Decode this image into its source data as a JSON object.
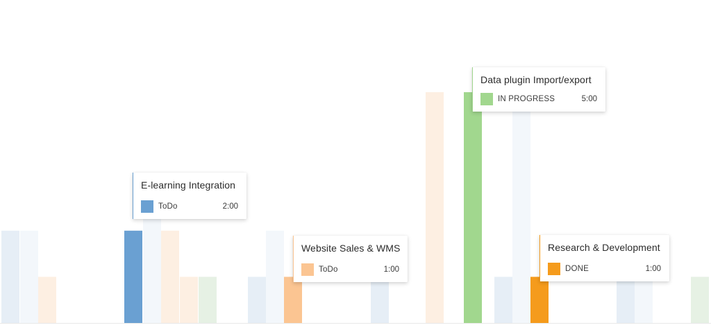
{
  "chart_data": {
    "type": "bar",
    "title": "",
    "xlabel": "",
    "ylabel": "",
    "ylim": [
      0,
      5
    ],
    "grid": false,
    "legend": "none",
    "colors": {
      "todo_blue": "#6aa0d2",
      "todo_orange": "#fbc592",
      "in_progress_green": "#a1d78e",
      "done_orange": "#f59b1c",
      "faded_blue": "#e6eef6",
      "faded_blue_light": "#f3f7fb",
      "faded_orange": "#fdefe2",
      "faded_green": "#e6f1e4",
      "axis": "#e8e8e8"
    },
    "highlighted_bars": [
      {
        "name": "E-learning Integration",
        "status": "ToDo",
        "value": 2,
        "color": "#6aa0d2"
      },
      {
        "name": "Website Sales & WMS",
        "status": "ToDo",
        "value": 1,
        "color": "#fbc592"
      },
      {
        "name": "Data plugin Import/export",
        "status": "IN PROGRESS",
        "value": 5,
        "color": "#a1d78e"
      },
      {
        "name": "Research & Development",
        "status": "DONE",
        "value": 1,
        "color": "#f59b1c"
      }
    ],
    "background_bars": [
      {
        "value": 2,
        "tone": "faded_blue"
      },
      {
        "value": 2,
        "tone": "faded_blue_light"
      },
      {
        "value": 1,
        "tone": "faded_orange"
      },
      {
        "value": 2.8,
        "tone": "faded_blue_light"
      },
      {
        "value": 2,
        "tone": "faded_orange"
      },
      {
        "value": 1,
        "tone": "faded_orange"
      },
      {
        "value": 1,
        "tone": "faded_green"
      },
      {
        "value": 1,
        "tone": "faded_blue"
      },
      {
        "value": 2,
        "tone": "faded_blue_light"
      },
      {
        "value": 1,
        "tone": "faded_blue"
      },
      {
        "value": 5,
        "tone": "faded_orange"
      },
      {
        "value": 1,
        "tone": "faded_blue"
      },
      {
        "value": 5,
        "tone": "faded_blue_light"
      },
      {
        "value": 1,
        "tone": "faded_blue"
      },
      {
        "value": 1,
        "tone": "faded_blue_light"
      },
      {
        "value": 1,
        "tone": "faded_green"
      }
    ]
  },
  "tooltips": [
    {
      "title": "E-learning Integration",
      "status": "ToDo",
      "time": "2:00",
      "color": "#6aa0d2"
    },
    {
      "title": "Website Sales & WMS",
      "status": "ToDo",
      "time": "1:00",
      "color": "#fbc592"
    },
    {
      "title": "Data plugin Import/export",
      "status": "IN PROGRESS",
      "time": "5:00",
      "color": "#a1d78e"
    },
    {
      "title": "Research & Development",
      "status": "DONE",
      "time": "1:00",
      "color": "#f59b1c"
    }
  ]
}
